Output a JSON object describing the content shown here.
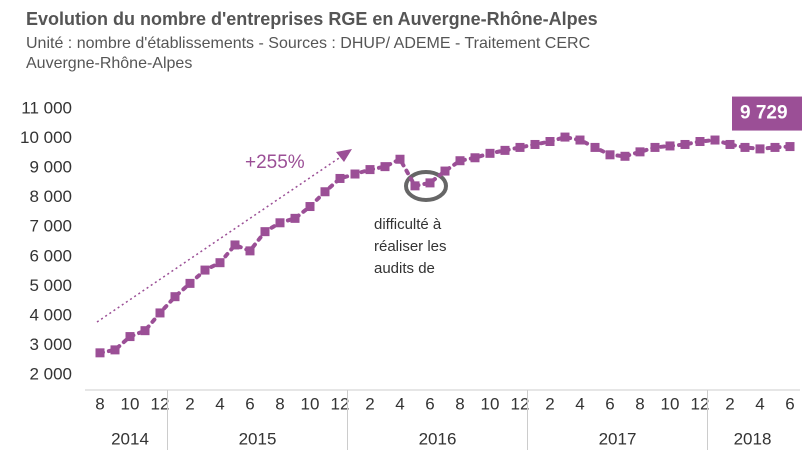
{
  "chart_data": {
    "type": "line",
    "title": "Evolution du nombre d'entreprises RGE en Auvergne-Rhône-Alpes",
    "subtitle": [
      "Unité : nombre d'établissements - Sources : DHUP/ ADEME - Traitement CERC",
      "Auvergne-Rhône-Alpes"
    ],
    "categories": [
      "8",
      null,
      "10",
      null,
      "12",
      null,
      "2",
      null,
      "4",
      null,
      "6",
      null,
      "8",
      null,
      "10",
      null,
      "12",
      null,
      "2",
      null,
      "4",
      null,
      "6",
      null,
      "8",
      null,
      "10",
      null,
      "12",
      null,
      "2",
      null,
      "4",
      null,
      "6",
      null,
      "8",
      null,
      "10",
      null,
      "12",
      null,
      "2",
      null,
      "4",
      null,
      "6"
    ],
    "year_labels": [
      "2014",
      "2015",
      "2016",
      "2017",
      "2018"
    ],
    "series": [
      {
        "name": "Entreprises RGE",
        "color": "#9b4f96",
        "values": [
          2750,
          2850,
          3300,
          3500,
          4100,
          4650,
          5100,
          5550,
          5800,
          6400,
          6200,
          6850,
          7150,
          7300,
          7700,
          8200,
          8650,
          8800,
          8950,
          9050,
          9300,
          8400,
          8500,
          8900,
          9250,
          9350,
          9500,
          9600,
          9700,
          9800,
          9900,
          10050,
          9950,
          9700,
          9450,
          9400,
          9550,
          9700,
          9750,
          9800,
          9900,
          9950,
          9800,
          9700,
          9650,
          9700,
          9729
        ],
        "value_labels": [
          null,
          null,
          null,
          null,
          null,
          null,
          null,
          null,
          null,
          null,
          null,
          null,
          null,
          null,
          null,
          null,
          null,
          null,
          null,
          null,
          null,
          null,
          null,
          null,
          null,
          null,
          null,
          null,
          null,
          null,
          null,
          null,
          null,
          null,
          null,
          null,
          null,
          null,
          null,
          null,
          null,
          null,
          null,
          null,
          null,
          null,
          "9 729"
        ]
      }
    ],
    "ylim": [
      2000,
      11000
    ],
    "yticks": [
      {
        "value": 2000,
        "label": "2 000"
      },
      {
        "value": 3000,
        "label": "3 000"
      },
      {
        "value": 4000,
        "label": "4 000"
      },
      {
        "value": 5000,
        "label": "5 000"
      },
      {
        "value": 6000,
        "label": "6 000"
      },
      {
        "value": 7000,
        "label": "7 000"
      },
      {
        "value": 8000,
        "label": "8 000"
      },
      {
        "value": 9000,
        "label": "9 000"
      },
      {
        "value": 10000,
        "label": "10 000"
      },
      {
        "value": 11000,
        "label": "11 000"
      }
    ],
    "grid": false,
    "annotations": {
      "growth": "+255%",
      "note": [
        "difficulté à",
        "réaliser les",
        "audits de"
      ]
    }
  }
}
